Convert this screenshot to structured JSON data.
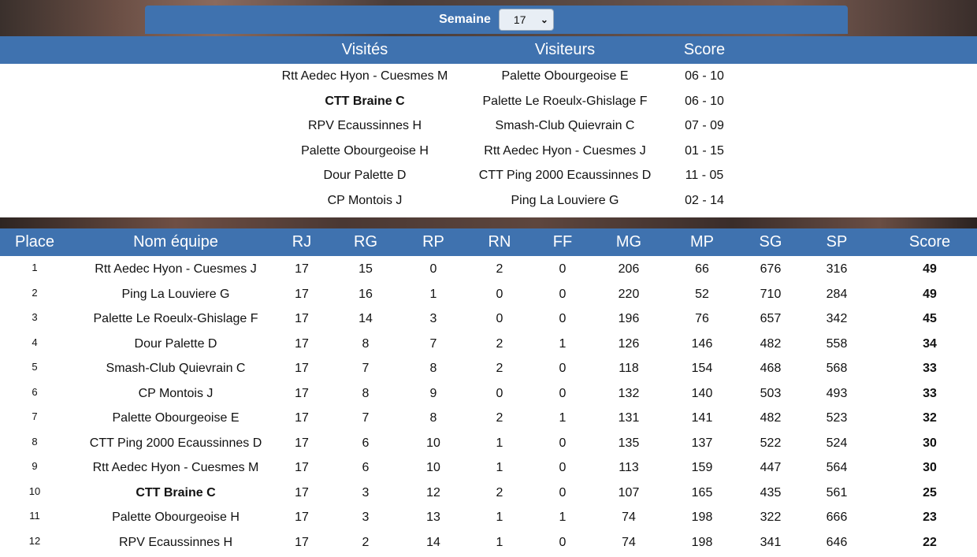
{
  "week_selector": {
    "label": "Semaine",
    "value": "17"
  },
  "matches": {
    "headers": {
      "home": "Visités",
      "away": "Visiteurs",
      "score": "Score"
    },
    "rows": [
      {
        "home": "Rtt Aedec Hyon - Cuesmes M",
        "away": "Palette Obourgeoise E",
        "score": "06 - 10",
        "home_bold": false,
        "away_bold": false
      },
      {
        "home": "CTT Braine C",
        "away": "Palette Le Roeulx-Ghislage F",
        "score": "06 - 10",
        "home_bold": true,
        "away_bold": false
      },
      {
        "home": "RPV Ecaussinnes H",
        "away": "Smash-Club Quievrain C",
        "score": "07 - 09",
        "home_bold": false,
        "away_bold": false
      },
      {
        "home": "Palette Obourgeoise H",
        "away": "Rtt Aedec Hyon - Cuesmes J",
        "score": "01 - 15",
        "home_bold": false,
        "away_bold": false
      },
      {
        "home": "Dour Palette D",
        "away": "CTT Ping 2000 Ecaussinnes D",
        "score": "11 - 05",
        "home_bold": false,
        "away_bold": false
      },
      {
        "home": "CP Montois J",
        "away": "Ping La Louviere G",
        "score": "02 - 14",
        "home_bold": false,
        "away_bold": false
      }
    ]
  },
  "ranking": {
    "headers": {
      "place": "Place",
      "team": "Nom équipe",
      "rj": "RJ",
      "rg": "RG",
      "rp": "RP",
      "rn": "RN",
      "ff": "FF",
      "mg": "MG",
      "mp": "MP",
      "sg": "SG",
      "sp": "SP",
      "score": "Score"
    },
    "rows": [
      {
        "place": "1",
        "team": "Rtt Aedec Hyon - Cuesmes J",
        "rj": "17",
        "rg": "15",
        "rp": "0",
        "rn": "2",
        "ff": "0",
        "mg": "206",
        "mp": "66",
        "sg": "676",
        "sp": "316",
        "score": "49",
        "bold": false
      },
      {
        "place": "2",
        "team": "Ping La Louviere G",
        "rj": "17",
        "rg": "16",
        "rp": "1",
        "rn": "0",
        "ff": "0",
        "mg": "220",
        "mp": "52",
        "sg": "710",
        "sp": "284",
        "score": "49",
        "bold": false
      },
      {
        "place": "3",
        "team": "Palette Le Roeulx-Ghislage F",
        "rj": "17",
        "rg": "14",
        "rp": "3",
        "rn": "0",
        "ff": "0",
        "mg": "196",
        "mp": "76",
        "sg": "657",
        "sp": "342",
        "score": "45",
        "bold": false
      },
      {
        "place": "4",
        "team": "Dour Palette D",
        "rj": "17",
        "rg": "8",
        "rp": "7",
        "rn": "2",
        "ff": "1",
        "mg": "126",
        "mp": "146",
        "sg": "482",
        "sp": "558",
        "score": "34",
        "bold": false
      },
      {
        "place": "5",
        "team": "Smash-Club Quievrain C",
        "rj": "17",
        "rg": "7",
        "rp": "8",
        "rn": "2",
        "ff": "0",
        "mg": "118",
        "mp": "154",
        "sg": "468",
        "sp": "568",
        "score": "33",
        "bold": false
      },
      {
        "place": "6",
        "team": "CP Montois J",
        "rj": "17",
        "rg": "8",
        "rp": "9",
        "rn": "0",
        "ff": "0",
        "mg": "132",
        "mp": "140",
        "sg": "503",
        "sp": "493",
        "score": "33",
        "bold": false
      },
      {
        "place": "7",
        "team": "Palette Obourgeoise E",
        "rj": "17",
        "rg": "7",
        "rp": "8",
        "rn": "2",
        "ff": "1",
        "mg": "131",
        "mp": "141",
        "sg": "482",
        "sp": "523",
        "score": "32",
        "bold": false
      },
      {
        "place": "8",
        "team": "CTT Ping 2000 Ecaussinnes D",
        "rj": "17",
        "rg": "6",
        "rp": "10",
        "rn": "1",
        "ff": "0",
        "mg": "135",
        "mp": "137",
        "sg": "522",
        "sp": "524",
        "score": "30",
        "bold": false
      },
      {
        "place": "9",
        "team": "Rtt Aedec Hyon - Cuesmes M",
        "rj": "17",
        "rg": "6",
        "rp": "10",
        "rn": "1",
        "ff": "0",
        "mg": "113",
        "mp": "159",
        "sg": "447",
        "sp": "564",
        "score": "30",
        "bold": false
      },
      {
        "place": "10",
        "team": "CTT Braine C",
        "rj": "17",
        "rg": "3",
        "rp": "12",
        "rn": "2",
        "ff": "0",
        "mg": "107",
        "mp": "165",
        "sg": "435",
        "sp": "561",
        "score": "25",
        "bold": true
      },
      {
        "place": "11",
        "team": "Palette Obourgeoise H",
        "rj": "17",
        "rg": "3",
        "rp": "13",
        "rn": "1",
        "ff": "1",
        "mg": "74",
        "mp": "198",
        "sg": "322",
        "sp": "666",
        "score": "23",
        "bold": false
      },
      {
        "place": "12",
        "team": "RPV Ecaussinnes H",
        "rj": "17",
        "rg": "2",
        "rp": "14",
        "rn": "1",
        "ff": "0",
        "mg": "74",
        "mp": "198",
        "sg": "341",
        "sp": "646",
        "score": "22",
        "bold": false
      }
    ]
  }
}
